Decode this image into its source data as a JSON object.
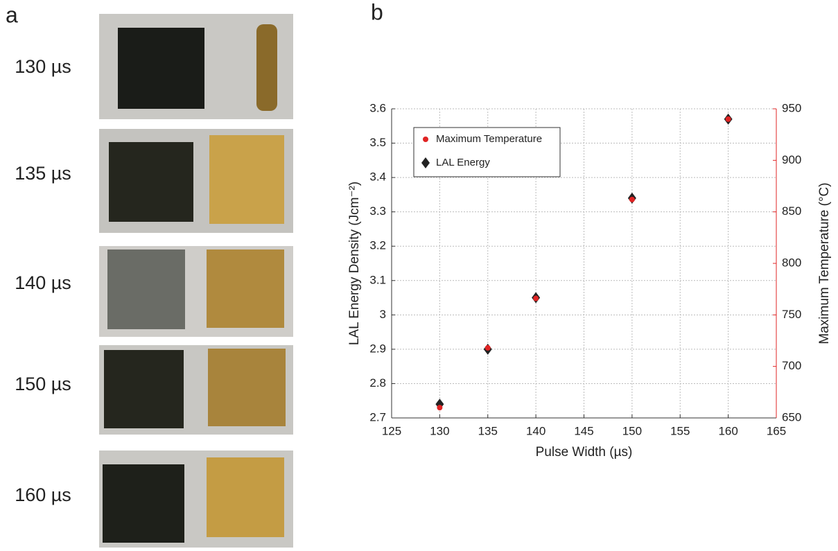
{
  "panel_a": {
    "label": "a",
    "rows": [
      "130 µs",
      "135 µs",
      "140 µs",
      "150 µs",
      "160 µs"
    ]
  },
  "panel_b": {
    "label": "b"
  },
  "chart_data": {
    "type": "scatter",
    "x_label": "Pulse Width (µs)",
    "y_label": "LAL Energy Density (Jcm⁻²)",
    "y2_label": "Maximum Temperature (°C)",
    "x": [
      130,
      135,
      140,
      150,
      160
    ],
    "series": [
      {
        "name": "LAL Energy",
        "color": "#222222",
        "marker": "diamond",
        "values": [
          2.74,
          2.9,
          3.05,
          3.34,
          3.57
        ]
      },
      {
        "name": "Maximum Temperature",
        "color": "#e02424",
        "marker": "circle",
        "axis": "y2",
        "values": [
          660,
          718,
          766,
          862,
          940
        ]
      }
    ],
    "legend_order": [
      1,
      0
    ],
    "xlim": [
      125,
      165
    ],
    "xticks": [
      125,
      130,
      135,
      140,
      145,
      150,
      155,
      160,
      165
    ],
    "ylim": [
      2.7,
      3.6
    ],
    "yticks": [
      2.7,
      2.8,
      2.9,
      3,
      3.1,
      3.2,
      3.3,
      3.4,
      3.5,
      3.6
    ],
    "y2lim": [
      650,
      950
    ],
    "y2ticks": [
      650,
      700,
      750,
      800,
      850,
      900,
      950
    ],
    "y2_color": "#e02424",
    "grid": true,
    "legend": "upper left"
  }
}
